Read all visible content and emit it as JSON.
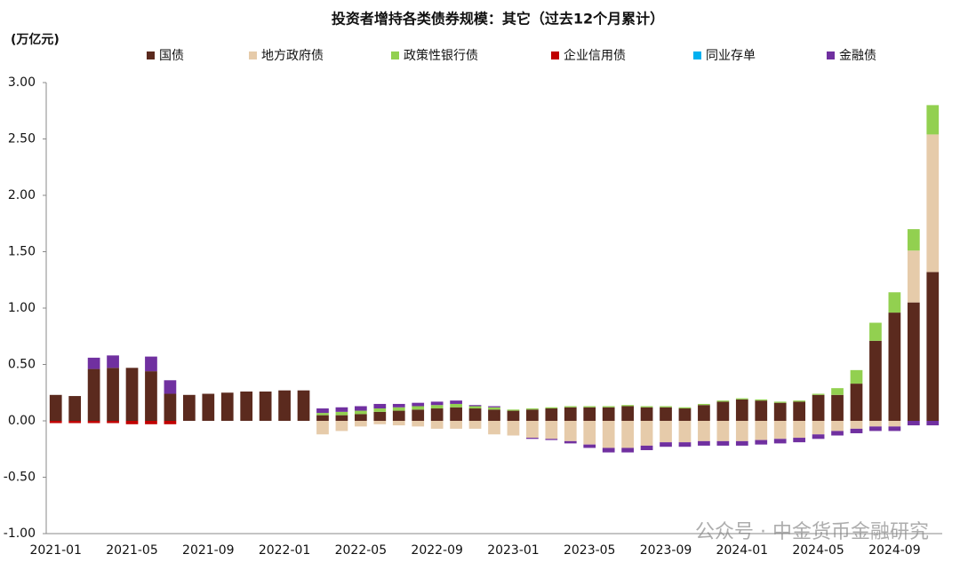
{
  "chart_data": {
    "type": "stacked_bar",
    "title": "投资者增持各类债券规模：其它（过去12个月累计）",
    "y_label": "(万亿元)",
    "watermark": "公众号 · 中金货币金融研究",
    "categories": [
      "2021-01",
      null,
      null,
      null,
      "2021-05",
      null,
      null,
      null,
      "2021-09",
      null,
      null,
      null,
      "2022-01",
      null,
      null,
      null,
      "2022-05",
      null,
      null,
      null,
      "2022-09",
      null,
      null,
      null,
      "2023-01",
      null,
      null,
      null,
      "2023-05",
      null,
      null,
      null,
      "2023-09",
      null,
      null,
      null,
      "2024-01",
      null,
      null,
      null,
      "2024-05",
      null,
      null,
      null,
      "2024-09",
      null,
      null
    ],
    "series": [
      {
        "name": "国债",
        "color": "#5b2a1e",
        "values": [
          0.23,
          0.22,
          0.46,
          0.47,
          0.47,
          0.44,
          0.24,
          0.23,
          0.24,
          0.25,
          0.26,
          0.26,
          0.27,
          0.27,
          0.05,
          0.05,
          0.06,
          0.08,
          0.09,
          0.1,
          0.11,
          0.12,
          0.11,
          0.1,
          0.09,
          0.1,
          0.11,
          0.12,
          0.12,
          0.12,
          0.13,
          0.12,
          0.12,
          0.11,
          0.14,
          0.17,
          0.19,
          0.18,
          0.16,
          0.17,
          0.23,
          0.23,
          0.33,
          0.71,
          0.96,
          1.05,
          1.32
        ]
      },
      {
        "name": "地方政府债",
        "color": "#e6cbaa",
        "values": [
          0,
          0,
          0,
          0,
          0,
          0,
          0,
          0,
          0,
          0,
          0,
          0,
          0,
          0,
          -0.12,
          -0.09,
          -0.05,
          -0.03,
          -0.04,
          -0.05,
          -0.07,
          -0.07,
          -0.07,
          -0.12,
          -0.13,
          -0.15,
          -0.16,
          -0.18,
          -0.21,
          -0.24,
          -0.24,
          -0.22,
          -0.19,
          -0.19,
          -0.18,
          -0.18,
          -0.18,
          -0.17,
          -0.16,
          -0.15,
          -0.12,
          -0.09,
          -0.07,
          -0.05,
          -0.05,
          0.46,
          1.22
        ]
      },
      {
        "name": "政策性银行债",
        "color": "#92d050",
        "values": [
          0,
          0,
          0,
          0,
          0,
          0,
          0,
          0,
          0,
          0,
          0,
          0,
          0,
          0,
          0.02,
          0.03,
          0.03,
          0.03,
          0.03,
          0.03,
          0.03,
          0.03,
          0.02,
          0.02,
          0.01,
          0.01,
          0.01,
          0.01,
          0.01,
          0.01,
          0.01,
          0.01,
          0.01,
          0.01,
          0.01,
          0.01,
          0.01,
          0.01,
          0.01,
          0.01,
          0.01,
          0.06,
          0.12,
          0.16,
          0.18,
          0.19,
          0.26
        ]
      },
      {
        "name": "企业信用债",
        "color": "#c00000",
        "values": [
          -0.02,
          -0.02,
          -0.02,
          -0.02,
          -0.03,
          -0.03,
          -0.03,
          0,
          0,
          0,
          0,
          0,
          0,
          0,
          0,
          0,
          0,
          0,
          0,
          0,
          0,
          0,
          0,
          0,
          0,
          0,
          0,
          0,
          0,
          0,
          0,
          0,
          0,
          0,
          0,
          0,
          0,
          0,
          0,
          0,
          0,
          0,
          0,
          0,
          0,
          0,
          0
        ]
      },
      {
        "name": "同业存单",
        "color": "#00b0f0",
        "values": [
          0,
          0,
          0,
          0,
          0,
          0,
          0,
          0,
          0,
          0,
          0,
          0,
          0,
          0,
          0,
          0,
          0,
          0,
          0,
          0,
          0,
          0,
          0,
          0,
          0,
          0,
          0,
          0,
          0,
          0,
          0,
          0,
          0,
          0,
          0,
          0,
          0,
          0,
          0,
          0,
          0,
          0,
          0,
          0,
          0,
          0,
          0
        ]
      },
      {
        "name": "金融债",
        "color": "#7030a0",
        "values": [
          0,
          0,
          0.1,
          0.11,
          0,
          0.13,
          0.12,
          0,
          0,
          0,
          0,
          0,
          0,
          0,
          0.04,
          0.04,
          0.04,
          0.04,
          0.03,
          0.03,
          0.03,
          0.03,
          0.01,
          0.01,
          0,
          -0.01,
          -0.01,
          -0.02,
          -0.03,
          -0.04,
          -0.04,
          -0.04,
          -0.04,
          -0.04,
          -0.04,
          -0.04,
          -0.04,
          -0.04,
          -0.04,
          -0.04,
          -0.04,
          -0.04,
          -0.04,
          -0.04,
          -0.04,
          -0.04,
          -0.04
        ]
      }
    ],
    "ylim": [
      -1,
      3
    ],
    "yticks": [
      {
        "value": 3,
        "label": "3.00"
      },
      {
        "value": 2.5,
        "label": "2.50"
      },
      {
        "value": 2,
        "label": "2.00"
      },
      {
        "value": 1.5,
        "label": "1.50"
      },
      {
        "value": 1,
        "label": "1.00"
      },
      {
        "value": 0.5,
        "label": "0.50"
      },
      {
        "value": 0,
        "label": "0.00"
      },
      {
        "value": -0.5,
        "label": "-0.50"
      },
      {
        "value": -1,
        "label": "-1.00"
      }
    ],
    "legend": "top",
    "grid": false
  }
}
